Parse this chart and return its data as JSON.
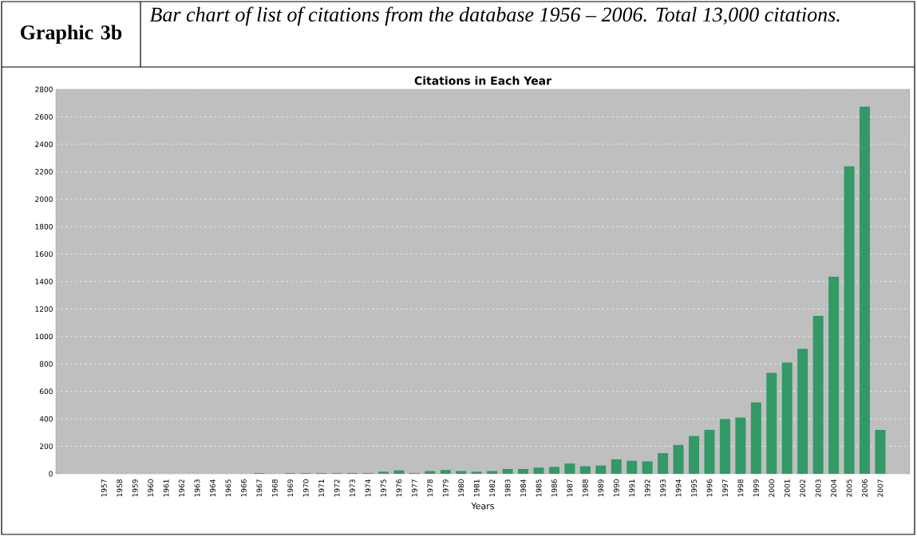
{
  "chart_data": {
    "type": "bar",
    "title": "Citations in Each Year",
    "xlabel": "Years",
    "annotations": [
      "Graphic 3b",
      "Bar chart of list of citations from the database 1956 – 2006. Total 13,000 citations."
    ],
    "categories": [
      "1957",
      "1958",
      "1959",
      "1960",
      "1961",
      "1962",
      "1963",
      "1964",
      "1965",
      "1966",
      "1967",
      "1968",
      "1969",
      "1970",
      "1971",
      "1972",
      "1973",
      "1974",
      "1975",
      "1976",
      "1977",
      "1978",
      "1979",
      "1980",
      "1981",
      "1982",
      "1983",
      "1984",
      "1985",
      "1986",
      "1987",
      "1988",
      "1989",
      "1990",
      "1991",
      "1992",
      "1993",
      "1994",
      "1995",
      "1996",
      "1997",
      "1998",
      "1999",
      "2000",
      "2001",
      "2002",
      "2003",
      "2004",
      "2005",
      "2006",
      "2007"
    ],
    "values": [
      0,
      0,
      0,
      0,
      0,
      0,
      0,
      0,
      0,
      0,
      5,
      0,
      5,
      5,
      5,
      5,
      5,
      5,
      15,
      25,
      5,
      20,
      28,
      20,
      15,
      20,
      35,
      35,
      45,
      50,
      75,
      55,
      60,
      105,
      95,
      90,
      150,
      210,
      275,
      320,
      400,
      410,
      520,
      735,
      810,
      910,
      1150,
      1435,
      2240,
      2675,
      320
    ],
    "color": "#339966",
    "ylim": [
      0,
      2800
    ],
    "yticks": [
      0,
      200,
      400,
      600,
      800,
      1000,
      1200,
      1400,
      1600,
      1800,
      2000,
      2200,
      2400,
      2600,
      2800
    ],
    "grid": "y"
  }
}
